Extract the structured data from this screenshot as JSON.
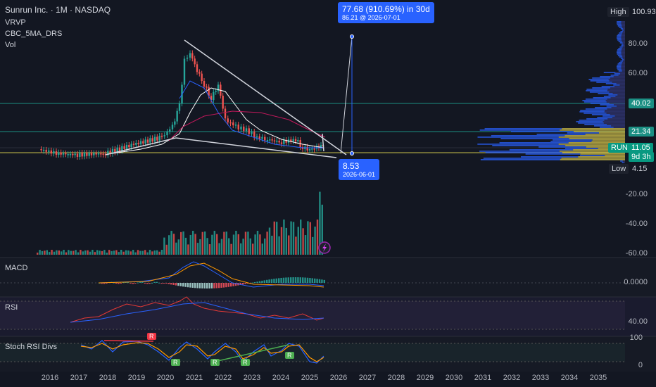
{
  "header": {
    "title": "Sunrun Inc. · 1M · NASDAQ",
    "indicators": [
      "VRVP",
      "CBC_5MA_DRS",
      "Vol"
    ]
  },
  "price_axis": {
    "high_label": "High",
    "high_value": "100.93",
    "ticks": [
      "80.00",
      "60.00",
      "40.00",
      "20.00"
    ],
    "tag_40": "40.02",
    "tag_21": "21.34",
    "run_label": "RUN",
    "run_value": "11.05",
    "run_countdown": "9d 3h",
    "low_label": "Low",
    "low_value": "4.15",
    "vol_ticks": [
      "-20.00",
      "-40.00",
      "-60.00"
    ]
  },
  "projection": {
    "change": "77.68 (910.69%) in 30d",
    "target": "86.21 @ 2026-07-01",
    "start_value": "8.53",
    "start_date": "2026-06-01"
  },
  "panels": {
    "macd": {
      "title": "MACD",
      "tick": "0.0000"
    },
    "rsi": {
      "title": "RSI",
      "tick": "40.00"
    },
    "stoch": {
      "title": "Stoch RSI Divs",
      "tick_top": "100",
      "tick_bottom": "0",
      "markers": [
        "R",
        "R",
        "R",
        "R",
        "R"
      ]
    }
  },
  "x_axis": [
    "2016",
    "2017",
    "2018",
    "2019",
    "2020",
    "2021",
    "2022",
    "2023",
    "2024",
    "2025",
    "2026",
    "2027",
    "2028",
    "2029",
    "2030",
    "2031",
    "2032",
    "2033",
    "2034",
    "2035"
  ],
  "colors": {
    "up": "#26a69a",
    "down": "#ef5350",
    "accent": "#2962ff",
    "volume_profile_up": "#2962ff",
    "volume_profile_poc": "#d4c34a",
    "bg": "#131722"
  }
}
